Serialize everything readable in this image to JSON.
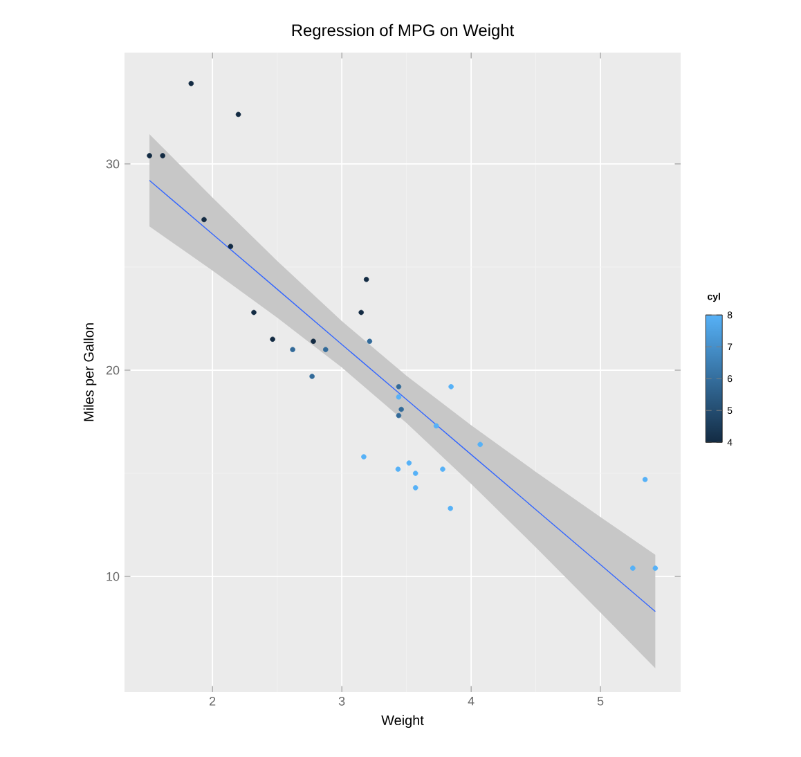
{
  "chart_data": {
    "type": "scatter",
    "title": "Regression of MPG on Weight",
    "xlabel": "Weight",
    "ylabel": "Miles per Gallon",
    "clabel": "cyl",
    "xlim": [
      1.32,
      5.62
    ],
    "ylim": [
      4.4,
      35.4
    ],
    "xticks": [
      2,
      3,
      4,
      5
    ],
    "yticks": [
      10,
      20,
      30
    ],
    "grid": true,
    "clim": [
      4,
      8
    ],
    "cticks": [
      4,
      5,
      6,
      7,
      8
    ],
    "series": [
      {
        "type": "line",
        "color": "#3366ff",
        "line_style": "solid",
        "marker": "none",
        "x": [
          1.513,
          2,
          2.5,
          3,
          3.5,
          4,
          4.5,
          5,
          5.424
        ],
        "values": [
          29.2,
          26.6,
          23.93,
          21.25,
          18.58,
          15.91,
          13.24,
          10.57,
          8.3
        ],
        "lower": [
          26.97,
          24.83,
          22.55,
          20.13,
          17.44,
          14.49,
          11.41,
          8.25,
          5.55
        ],
        "upper": [
          31.44,
          28.37,
          25.3,
          22.38,
          19.73,
          17.33,
          15.07,
          12.88,
          11.05
        ]
      },
      {
        "marker": "circle",
        "colors": [
          "#336a98",
          "#336a98",
          "#132b43",
          "#336a98",
          "#56b1f7",
          "#336a98",
          "#56b1f7",
          "#132b43",
          "#132b43",
          "#336a98",
          "#336a98",
          "#56b1f7",
          "#56b1f7",
          "#56b1f7",
          "#56b1f7",
          "#56b1f7",
          "#56b1f7",
          "#132b43",
          "#132b43",
          "#132b43",
          "#132b43",
          "#56b1f7",
          "#56b1f7",
          "#56b1f7",
          "#56b1f7",
          "#132b43",
          "#132b43",
          "#132b43",
          "#56b1f7",
          "#336a98",
          "#56b1f7",
          "#132b43"
        ],
        "x": [
          2.62,
          2.875,
          2.32,
          3.215,
          3.44,
          3.46,
          3.57,
          3.19,
          3.15,
          3.44,
          3.44,
          4.07,
          3.73,
          3.78,
          5.25,
          5.424,
          5.345,
          2.2,
          1.615,
          1.835,
          2.465,
          3.52,
          3.435,
          3.84,
          3.845,
          1.935,
          2.14,
          1.513,
          3.17,
          2.77,
          3.57,
          2.78
        ],
        "values": [
          21.0,
          21.0,
          22.8,
          21.4,
          18.7,
          18.1,
          14.3,
          24.4,
          22.8,
          19.2,
          17.8,
          16.4,
          17.3,
          15.2,
          10.4,
          10.4,
          14.7,
          32.4,
          30.4,
          33.9,
          21.5,
          15.5,
          15.2,
          13.3,
          19.2,
          27.3,
          26.0,
          30.4,
          15.8,
          19.7,
          15.0,
          21.4
        ],
        "cvalues": [
          6,
          6,
          4,
          6,
          8,
          6,
          8,
          4,
          4,
          6,
          6,
          8,
          8,
          8,
          8,
          8,
          8,
          4,
          4,
          4,
          4,
          8,
          8,
          8,
          8,
          4,
          4,
          4,
          8,
          6,
          8,
          4
        ]
      }
    ]
  }
}
